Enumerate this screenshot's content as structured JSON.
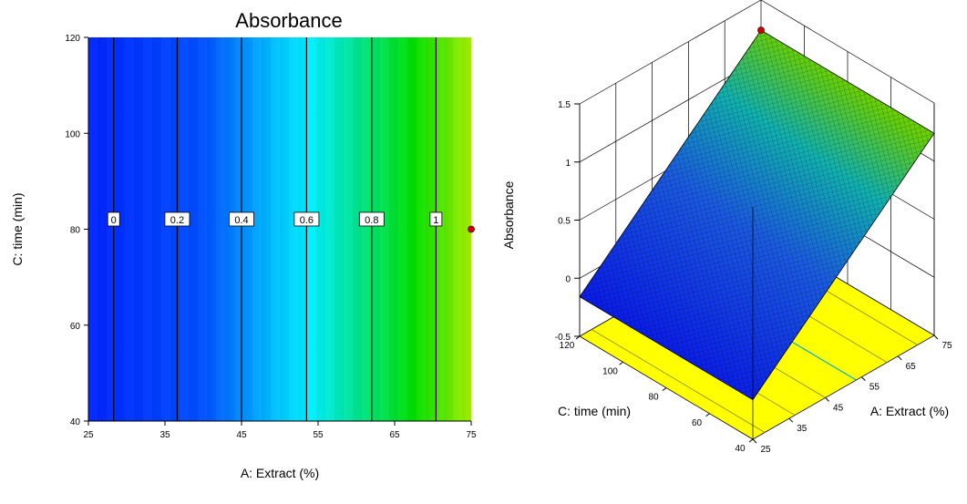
{
  "chart_data": [
    {
      "type": "heatmap",
      "subtype": "contour",
      "title": "Absorbance",
      "xlabel": "A: Extract (%)",
      "ylabel": "C: time (min)",
      "xlim": [
        25,
        75
      ],
      "ylim": [
        40,
        120
      ],
      "x_ticks": [
        "25",
        "35",
        "45",
        "55",
        "65",
        "75"
      ],
      "y_ticks": [
        "40",
        "60",
        "80",
        "100",
        "120"
      ],
      "contours": [
        {
          "label": "0",
          "x": 28.3
        },
        {
          "label": "0.2",
          "x": 36.6
        },
        {
          "label": "0.4",
          "x": 45.0
        },
        {
          "label": "0.6",
          "x": 53.5
        },
        {
          "label": "0.8",
          "x": 62.0
        },
        {
          "label": "1",
          "x": 70.4
        }
      ],
      "contour_label_y": 82,
      "points": [
        {
          "x": 75,
          "y": 80
        }
      ],
      "colormap": [
        "#0028ff",
        "#0066ff",
        "#00e5ff",
        "#00e070",
        "#00e000",
        "#9ef000"
      ]
    },
    {
      "type": "surface",
      "zlabel": "Absorbance",
      "xlabel": "A: Extract (%)",
      "ylabel": "C: time (min)",
      "xlim": [
        25,
        75
      ],
      "ylim": [
        40,
        120
      ],
      "zlim": [
        -0.5,
        1.5
      ],
      "x_ticks": [
        "25",
        "35",
        "45",
        "55",
        "65",
        "75"
      ],
      "y_ticks": [
        "40",
        "60",
        "80",
        "100",
        "120"
      ],
      "z_ticks": [
        "-0.5",
        "0",
        "0.5",
        "1",
        "1.5"
      ],
      "z_range_shown": [
        -0.16,
        1.24
      ],
      "points": [
        {
          "x": 75,
          "y": 120,
          "z": 1.24
        }
      ],
      "floor_color": "#ffff00",
      "point_color": "#cc0000"
    }
  ]
}
